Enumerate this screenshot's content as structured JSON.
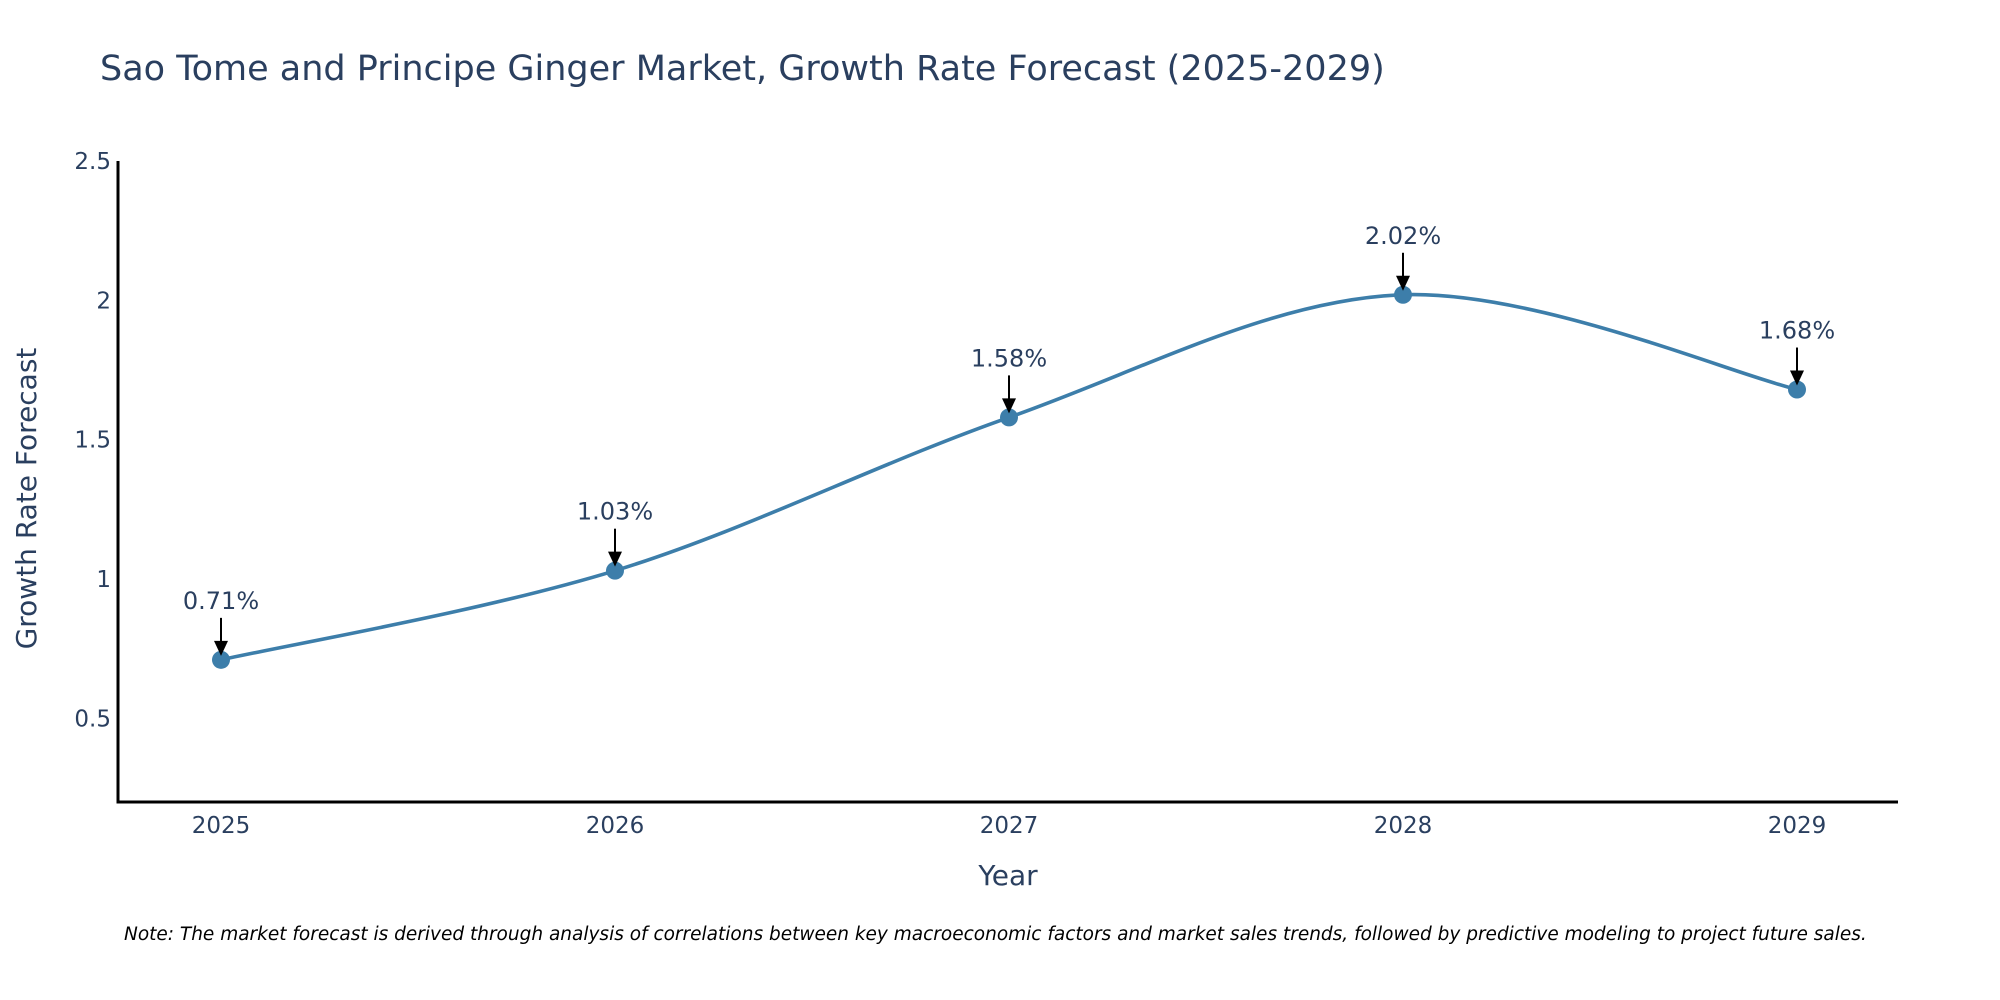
{
  "chart_data": {
    "type": "line",
    "title": "Sao Tome and Principe Ginger Market, Growth Rate Forecast (2025-2029)",
    "xlabel": "Year",
    "ylabel": "Growth Rate Forecast",
    "categories": [
      "2025",
      "2026",
      "2027",
      "2028",
      "2029"
    ],
    "values": [
      0.71,
      1.03,
      1.58,
      2.02,
      1.68
    ],
    "data_labels": [
      "0.71%",
      "1.03%",
      "1.58%",
      "2.02%",
      "1.68%"
    ],
    "y_ticks": [
      0.5,
      1,
      1.5,
      2,
      2.5
    ],
    "y_tick_labels": [
      "0.5",
      "1",
      "1.5",
      "2",
      "2.5"
    ],
    "ylim": [
      0.2,
      2.5
    ],
    "grid": false,
    "line_shape": "spline",
    "line_color": "#3d7eaa",
    "marker_color": "#3d7eaa",
    "note": "Note: The market forecast is derived through analysis of correlations between key macroeconomic factors and market sales trends, followed by predictive modeling to project future sales."
  }
}
